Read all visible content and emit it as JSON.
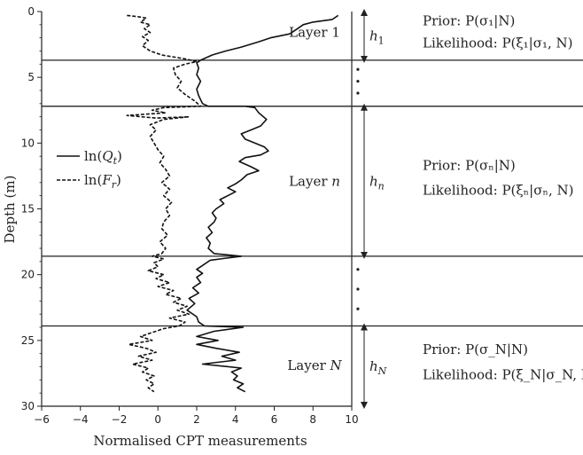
{
  "chart_data": {
    "type": "line",
    "xlabel": "Normalised CPT measurements",
    "ylabel": "Depth (m)",
    "xlim": [
      -6,
      10
    ],
    "ylim": [
      0,
      30
    ],
    "y_inverted": true,
    "x_ticks": [
      "-6",
      "-4",
      "-2",
      "0",
      "2",
      "4",
      "6",
      "8",
      "10"
    ],
    "y_ticks": [
      "0",
      "5",
      "10",
      "15",
      "20",
      "25",
      "30"
    ],
    "legend": {
      "placement": "left",
      "items": [
        {
          "label_prefix": "ln(",
          "label_var": "Q",
          "label_sub": "t",
          "label_suffix": ")",
          "style": "solid"
        },
        {
          "label_prefix": "ln(",
          "label_var": "F",
          "label_sub": "r",
          "label_suffix": ")",
          "style": "dashed"
        }
      ]
    },
    "layer_boundaries": [
      3.7,
      7.2,
      18.6,
      23.9
    ],
    "layer_labels": [
      {
        "prefix": "Layer ",
        "var": "1",
        "y": 1.6
      },
      {
        "prefix": "Layer ",
        "var": "n",
        "y": 12.9
      },
      {
        "prefix": "Layer ",
        "var": "N",
        "y": 26.9
      }
    ],
    "thickness_labels": [
      {
        "var": "h",
        "sub": "1",
        "y_top": 0,
        "y_bottom": 3.7
      },
      {
        "var": "h",
        "sub": "n",
        "y_top": 7.2,
        "y_bottom": 18.6
      },
      {
        "var": "h",
        "sub": "N",
        "y_top": 23.9,
        "y_bottom": 30
      }
    ],
    "annotations": [
      {
        "y": 0.7,
        "text": "Prior: P(σ₁|N)"
      },
      {
        "y": 2.4,
        "text": "Likelihood: P(ξ₁|σ₁, N)"
      },
      {
        "y": 11.7,
        "text": "Prior: P(σₙ|N)"
      },
      {
        "y": 13.6,
        "text": "Likelihood: P(ξₙ|σₙ, N)"
      },
      {
        "y": 25.7,
        "text": "Prior: P(σ_N|N)"
      },
      {
        "y": 27.6,
        "text": "Likelihood: P(ξ_N|σ_N, N)"
      }
    ],
    "ellipsis_dots": [
      {
        "x": 7.3,
        "y": 4.4
      },
      {
        "x": 7.3,
        "y": 5.3
      },
      {
        "x": 7.3,
        "y": 6.2
      },
      {
        "x": 7.3,
        "y": 19.6
      },
      {
        "x": 7.3,
        "y": 21.1
      },
      {
        "x": 7.3,
        "y": 22.6
      }
    ],
    "series": [
      {
        "name": "ln(Qt)",
        "style": "solid",
        "points": [
          [
            9.3,
            0.3
          ],
          [
            9.0,
            0.6
          ],
          [
            8.0,
            0.8
          ],
          [
            7.5,
            1.0
          ],
          [
            7.2,
            1.3
          ],
          [
            6.8,
            1.7
          ],
          [
            5.8,
            2.0
          ],
          [
            5.2,
            2.3
          ],
          [
            4.3,
            2.7
          ],
          [
            3.5,
            3.0
          ],
          [
            2.8,
            3.3
          ],
          [
            2.2,
            3.7
          ],
          [
            2.0,
            3.9
          ],
          [
            2.1,
            4.3
          ],
          [
            2.0,
            4.8
          ],
          [
            2.2,
            5.3
          ],
          [
            2.0,
            5.9
          ],
          [
            2.1,
            6.4
          ],
          [
            2.3,
            7.0
          ],
          [
            2.6,
            7.2
          ],
          [
            4.5,
            7.2
          ],
          [
            5.0,
            7.3
          ],
          [
            5.2,
            7.7
          ],
          [
            5.6,
            8.2
          ],
          [
            5.3,
            8.7
          ],
          [
            4.8,
            9.0
          ],
          [
            4.3,
            9.3
          ],
          [
            4.5,
            9.7
          ],
          [
            5.0,
            10.0
          ],
          [
            5.5,
            10.3
          ],
          [
            5.7,
            10.6
          ],
          [
            5.3,
            10.9
          ],
          [
            4.5,
            11.1
          ],
          [
            4.2,
            11.4
          ],
          [
            4.8,
            11.8
          ],
          [
            5.2,
            12.1
          ],
          [
            4.6,
            12.4
          ],
          [
            4.3,
            12.8
          ],
          [
            4.0,
            13.1
          ],
          [
            3.6,
            13.4
          ],
          [
            4.0,
            13.7
          ],
          [
            3.6,
            14.0
          ],
          [
            3.2,
            14.3
          ],
          [
            3.4,
            14.6
          ],
          [
            3.0,
            15.0
          ],
          [
            2.8,
            15.3
          ],
          [
            3.0,
            15.7
          ],
          [
            2.9,
            16.0
          ],
          [
            2.6,
            16.4
          ],
          [
            2.8,
            16.8
          ],
          [
            2.5,
            17.2
          ],
          [
            2.7,
            17.6
          ],
          [
            2.6,
            18.0
          ],
          [
            2.9,
            18.4
          ],
          [
            4.3,
            18.6
          ],
          [
            2.7,
            18.9
          ],
          [
            2.3,
            19.3
          ],
          [
            2.0,
            19.6
          ],
          [
            2.3,
            19.9
          ],
          [
            2.0,
            20.2
          ],
          [
            2.2,
            20.6
          ],
          [
            1.8,
            21.0
          ],
          [
            2.1,
            21.4
          ],
          [
            1.6,
            21.8
          ],
          [
            1.9,
            22.2
          ],
          [
            1.5,
            22.7
          ],
          [
            2.0,
            23.2
          ],
          [
            2.1,
            23.6
          ],
          [
            2.4,
            23.9
          ],
          [
            4.4,
            24.0
          ],
          [
            2.9,
            24.3
          ],
          [
            2.0,
            24.7
          ],
          [
            3.1,
            25.0
          ],
          [
            2.0,
            25.3
          ],
          [
            3.0,
            25.6
          ],
          [
            4.2,
            25.9
          ],
          [
            3.3,
            26.2
          ],
          [
            4.0,
            26.5
          ],
          [
            2.3,
            26.8
          ],
          [
            4.3,
            27.1
          ],
          [
            3.8,
            27.4
          ],
          [
            4.1,
            27.7
          ],
          [
            3.9,
            28.0
          ],
          [
            4.4,
            28.3
          ],
          [
            4.1,
            28.6
          ],
          [
            4.5,
            28.9
          ]
        ]
      },
      {
        "name": "ln(Fr)",
        "style": "dashed",
        "points": [
          [
            -1.6,
            0.3
          ],
          [
            -1.0,
            0.4
          ],
          [
            -0.6,
            0.5
          ],
          [
            -0.9,
            0.8
          ],
          [
            -0.4,
            1.0
          ],
          [
            -0.7,
            1.3
          ],
          [
            -0.4,
            1.6
          ],
          [
            -0.8,
            1.9
          ],
          [
            -0.5,
            2.2
          ],
          [
            -0.8,
            2.6
          ],
          [
            -0.4,
            3.0
          ],
          [
            0.2,
            3.3
          ],
          [
            1.4,
            3.6
          ],
          [
            2.0,
            3.8
          ],
          [
            1.4,
            4.0
          ],
          [
            0.8,
            4.3
          ],
          [
            0.9,
            4.8
          ],
          [
            1.2,
            5.3
          ],
          [
            1.0,
            5.8
          ],
          [
            1.4,
            6.3
          ],
          [
            1.9,
            6.8
          ],
          [
            2.2,
            7.2
          ],
          [
            0.3,
            7.3
          ],
          [
            -0.3,
            7.5
          ],
          [
            0.4,
            7.7
          ],
          [
            -1.6,
            7.9
          ],
          [
            -0.1,
            8.1
          ],
          [
            1.6,
            8.0
          ],
          [
            0.3,
            8.2
          ],
          [
            -0.4,
            8.6
          ],
          [
            -0.1,
            9.0
          ],
          [
            -0.4,
            9.5
          ],
          [
            -0.2,
            10.0
          ],
          [
            0.0,
            10.5
          ],
          [
            0.3,
            11.0
          ],
          [
            0.1,
            11.5
          ],
          [
            0.4,
            12.0
          ],
          [
            0.6,
            12.5
          ],
          [
            0.2,
            13.0
          ],
          [
            0.6,
            13.5
          ],
          [
            0.3,
            14.0
          ],
          [
            0.7,
            14.5
          ],
          [
            0.4,
            15.0
          ],
          [
            0.6,
            15.5
          ],
          [
            0.3,
            16.0
          ],
          [
            0.2,
            16.5
          ],
          [
            0.5,
            17.0
          ],
          [
            0.1,
            17.5
          ],
          [
            0.4,
            18.0
          ],
          [
            0.2,
            18.4
          ],
          [
            -0.3,
            18.6
          ],
          [
            0.3,
            18.8
          ],
          [
            -0.2,
            19.1
          ],
          [
            0.0,
            19.4
          ],
          [
            -0.5,
            19.7
          ],
          [
            0.3,
            20.0
          ],
          [
            -0.1,
            20.3
          ],
          [
            0.6,
            20.6
          ],
          [
            0.0,
            20.9
          ],
          [
            0.8,
            21.2
          ],
          [
            0.4,
            21.5
          ],
          [
            1.2,
            21.8
          ],
          [
            0.8,
            22.1
          ],
          [
            1.5,
            22.4
          ],
          [
            1.0,
            22.7
          ],
          [
            1.6,
            23.0
          ],
          [
            0.6,
            23.3
          ],
          [
            1.4,
            23.6
          ],
          [
            1.1,
            23.9
          ],
          [
            0.3,
            24.1
          ],
          [
            -0.3,
            24.4
          ],
          [
            -0.9,
            24.7
          ],
          [
            -0.3,
            25.0
          ],
          [
            -1.5,
            25.3
          ],
          [
            -0.6,
            25.6
          ],
          [
            -0.1,
            25.9
          ],
          [
            -1.0,
            26.2
          ],
          [
            -0.3,
            26.5
          ],
          [
            -1.3,
            26.8
          ],
          [
            -0.5,
            27.1
          ],
          [
            -0.8,
            27.4
          ],
          [
            -0.2,
            27.7
          ],
          [
            -0.6,
            28.0
          ],
          [
            -0.2,
            28.3
          ],
          [
            -0.5,
            28.6
          ],
          [
            -0.2,
            28.9
          ]
        ]
      }
    ]
  }
}
